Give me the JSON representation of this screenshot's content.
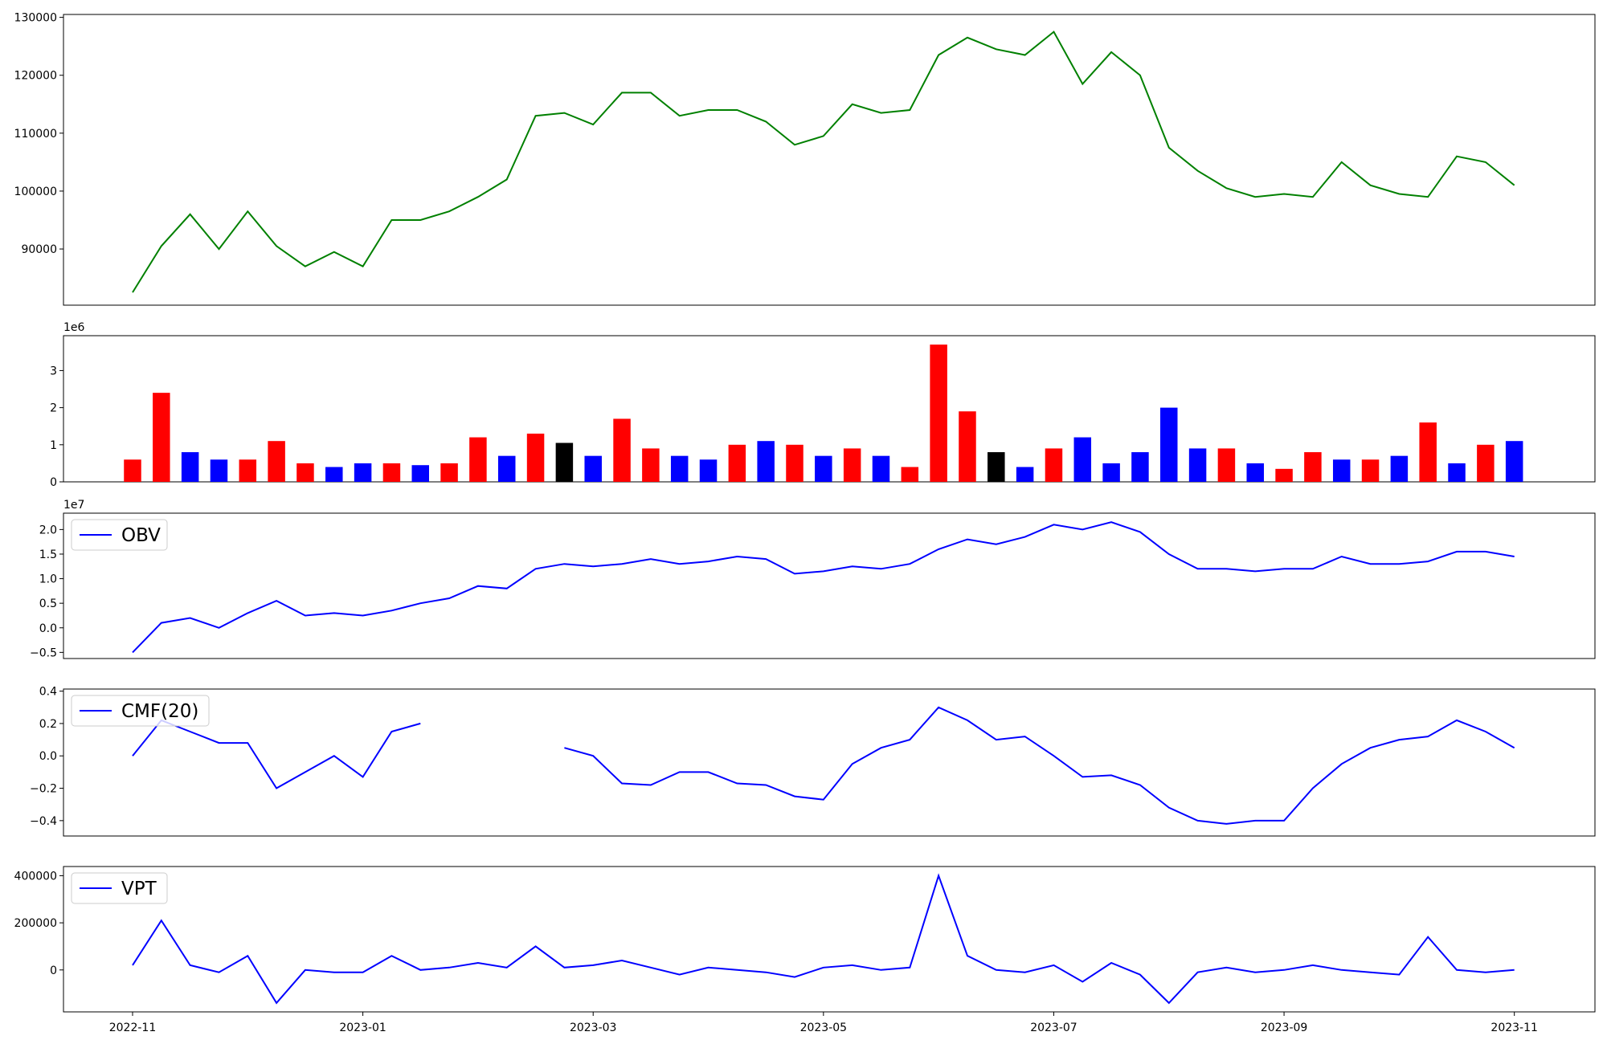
{
  "chart_data": [
    {
      "type": "line",
      "x": [
        0,
        0.25,
        0.5,
        0.75,
        1,
        1.25,
        1.5,
        1.75,
        2,
        2.25,
        2.5,
        2.75,
        3,
        3.25,
        3.5,
        3.75,
        4,
        4.25,
        4.5,
        4.75,
        5,
        5.25,
        5.5,
        5.75,
        6,
        6.25,
        6.5,
        6.75,
        7,
        7.25,
        7.5,
        7.75,
        8,
        8.25,
        8.5,
        8.75,
        9,
        9.25,
        9.5,
        9.75,
        10,
        10.25,
        10.5,
        10.75,
        11,
        11.25,
        11.5,
        11.75,
        12
      ],
      "xlim": [
        -0.6,
        12.7
      ],
      "ylim": [
        80300,
        130500
      ],
      "yticks": [
        90000,
        100000,
        110000,
        120000,
        130000
      ],
      "series": [
        {
          "color": "#008000",
          "values": [
            82500,
            90500,
            96000,
            90000,
            96500,
            90500,
            87000,
            89500,
            87000,
            95000,
            95000,
            96500,
            99000,
            102000,
            113000,
            113500,
            111500,
            117000,
            117000,
            113000,
            114000,
            114000,
            112000,
            108000,
            109500,
            115000,
            113500,
            114000,
            123500,
            126500,
            124500,
            123500,
            127500,
            118500,
            124000,
            120000,
            107500,
            103500,
            100500,
            99000,
            99500,
            99000,
            105000,
            101000,
            99500,
            99000,
            106000,
            105000,
            101000
          ]
        }
      ]
    },
    {
      "type": "bar",
      "x": [
        0,
        0.25,
        0.5,
        0.75,
        1,
        1.25,
        1.5,
        1.75,
        2,
        2.25,
        2.5,
        2.75,
        3,
        3.25,
        3.5,
        3.75,
        4,
        4.25,
        4.5,
        4.75,
        5,
        5.25,
        5.5,
        5.75,
        6,
        6.25,
        6.5,
        6.75,
        7,
        7.25,
        7.5,
        7.75,
        8,
        8.25,
        8.5,
        8.75,
        9,
        9.25,
        9.5,
        9.75,
        10,
        10.25,
        10.5,
        10.75,
        11,
        11.25,
        11.5,
        11.75,
        12
      ],
      "xlim": [
        -0.6,
        12.7
      ],
      "offset_text": "1e6",
      "ylim": [
        0,
        3.94
      ],
      "yticks": [
        0,
        1,
        2,
        3
      ],
      "series": [
        {
          "values": [
            0.6,
            2.4,
            0.8,
            0.6,
            0.6,
            1.1,
            0.5,
            0.4,
            0.5,
            0.5,
            0.45,
            0.5,
            1.2,
            0.7,
            1.3,
            1.05,
            0.7,
            1.7,
            0.9,
            0.7,
            0.6,
            1.0,
            1.1,
            1.0,
            0.7,
            0.9,
            0.7,
            0.4,
            3.7,
            1.9,
            0.8,
            0.4,
            0.9,
            1.2,
            0.5,
            0.8,
            2.0,
            0.9,
            0.9,
            0.5,
            0.35,
            0.8,
            0.6,
            0.6,
            0.7,
            1.6,
            0.5,
            1.0,
            1.1
          ],
          "colors": [
            "#ff0000",
            "#ff0000",
            "#0000ff",
            "#0000ff",
            "#ff0000",
            "#ff0000",
            "#ff0000",
            "#0000ff",
            "#0000ff",
            "#ff0000",
            "#0000ff",
            "#ff0000",
            "#ff0000",
            "#0000ff",
            "#ff0000",
            "#000000",
            "#0000ff",
            "#ff0000",
            "#ff0000",
            "#0000ff",
            "#0000ff",
            "#ff0000",
            "#0000ff",
            "#ff0000",
            "#0000ff",
            "#ff0000",
            "#0000ff",
            "#ff0000",
            "#ff0000",
            "#ff0000",
            "#000000",
            "#0000ff",
            "#ff0000",
            "#0000ff",
            "#0000ff",
            "#0000ff",
            "#0000ff",
            "#0000ff",
            "#ff0000",
            "#0000ff",
            "#ff0000",
            "#ff0000",
            "#0000ff",
            "#ff0000",
            "#0000ff",
            "#ff0000",
            "#0000ff",
            "#ff0000",
            "#0000ff"
          ]
        }
      ]
    },
    {
      "type": "line",
      "x": [
        0,
        0.25,
        0.5,
        0.75,
        1,
        1.25,
        1.5,
        1.75,
        2,
        2.25,
        2.5,
        2.75,
        3,
        3.25,
        3.5,
        3.75,
        4,
        4.25,
        4.5,
        4.75,
        5,
        5.25,
        5.5,
        5.75,
        6,
        6.25,
        6.5,
        6.75,
        7,
        7.25,
        7.5,
        7.75,
        8,
        8.25,
        8.5,
        8.75,
        9,
        9.25,
        9.5,
        9.75,
        10,
        10.25,
        10.5,
        10.75,
        11,
        11.25,
        11.5,
        11.75,
        12
      ],
      "xlim": [
        -0.6,
        12.7
      ],
      "offset_text": "1e7",
      "legend": "upper left",
      "ylim": [
        -0.625,
        2.333
      ],
      "yticks": [
        {
          "value": -0.5,
          "label": "−0.5"
        },
        {
          "value": 0,
          "label": "0.0"
        },
        0.5,
        {
          "value": 1,
          "label": "1.0"
        },
        1.5,
        {
          "value": 2,
          "label": "2.0"
        }
      ],
      "series": [
        {
          "name": "OBV",
          "color": "#0000ff",
          "values": [
            -0.5,
            0.1,
            0.2,
            0.0,
            0.3,
            0.55,
            0.25,
            0.3,
            0.25,
            0.35,
            0.5,
            0.6,
            0.85,
            0.8,
            1.2,
            1.3,
            1.25,
            1.3,
            1.4,
            1.3,
            1.35,
            1.45,
            1.4,
            1.1,
            1.15,
            1.25,
            1.2,
            1.3,
            1.6,
            1.8,
            1.7,
            1.85,
            2.1,
            2.0,
            2.15,
            1.95,
            1.5,
            1.2,
            1.2,
            1.15,
            1.2,
            1.2,
            1.45,
            1.3,
            1.3,
            1.35,
            1.55,
            1.55,
            1.45
          ]
        }
      ]
    },
    {
      "type": "line",
      "x": [
        0,
        0.25,
        0.5,
        0.75,
        1,
        1.25,
        1.5,
        1.75,
        2,
        2.25,
        2.5,
        2.75,
        3,
        3.25,
        3.5,
        3.75,
        4,
        4.25,
        4.5,
        4.75,
        5,
        5.25,
        5.5,
        5.75,
        6,
        6.25,
        6.5,
        6.75,
        7,
        7.25,
        7.5,
        7.75,
        8,
        8.25,
        8.5,
        8.75,
        9,
        9.25,
        9.5,
        9.75,
        10,
        10.25,
        10.5,
        10.75,
        11,
        11.25,
        11.5,
        11.75,
        12
      ],
      "xlim": [
        -0.6,
        12.7
      ],
      "legend": "upper left",
      "ylim": [
        -0.495,
        0.413
      ],
      "yticks": [
        {
          "value": -0.4,
          "label": "−0.4"
        },
        {
          "value": -0.2,
          "label": "−0.2"
        },
        {
          "value": 0,
          "label": "0.0"
        },
        0.2,
        0.4
      ],
      "series": [
        {
          "name": "CMF(20)",
          "color": "#0000ff",
          "values": [
            0.0,
            0.22,
            0.15,
            0.08,
            0.08,
            -0.2,
            -0.1,
            0.0,
            -0.13,
            0.15,
            0.2,
            null,
            null,
            null,
            null,
            0.05,
            0.0,
            -0.17,
            -0.18,
            -0.1,
            -0.1,
            -0.17,
            -0.18,
            -0.25,
            -0.27,
            -0.05,
            0.05,
            0.1,
            0.3,
            0.22,
            0.1,
            0.12,
            0.0,
            -0.13,
            -0.12,
            -0.18,
            -0.32,
            -0.4,
            -0.42,
            -0.4,
            -0.4,
            -0.2,
            -0.05,
            0.05,
            0.1,
            0.12,
            0.22,
            0.15,
            0.05
          ]
        }
      ]
    },
    {
      "type": "line",
      "x": [
        0,
        0.25,
        0.5,
        0.75,
        1,
        1.25,
        1.5,
        1.75,
        2,
        2.25,
        2.5,
        2.75,
        3,
        3.25,
        3.5,
        3.75,
        4,
        4.25,
        4.5,
        4.75,
        5,
        5.25,
        5.5,
        5.75,
        6,
        6.25,
        6.5,
        6.75,
        7,
        7.25,
        7.5,
        7.75,
        8,
        8.25,
        8.5,
        8.75,
        9,
        9.25,
        9.5,
        9.75,
        10,
        10.25,
        10.5,
        10.75,
        11,
        11.25,
        11.5,
        11.75,
        12
      ],
      "xlim": [
        -0.6,
        12.7
      ],
      "xticks": [
        {
          "value": 0,
          "label": "2022-11"
        },
        {
          "value": 2,
          "label": "2023-01"
        },
        {
          "value": 4,
          "label": "2023-03"
        },
        {
          "value": 6,
          "label": "2023-05"
        },
        {
          "value": 8,
          "label": "2023-07"
        },
        {
          "value": 10,
          "label": "2023-09"
        },
        {
          "value": 12,
          "label": "2023-11"
        }
      ],
      "legend": "upper left",
      "ylim": [
        -178000,
        439000
      ],
      "yticks": [
        0,
        200000,
        400000
      ],
      "series": [
        {
          "name": "VPT",
          "color": "#0000ff",
          "values": [
            20000,
            210000,
            20000,
            -10000,
            60000,
            -140000,
            0,
            -10000,
            -10000,
            60000,
            0,
            10000,
            30000,
            10000,
            100000,
            10000,
            20000,
            40000,
            10000,
            -20000,
            10000,
            0,
            -10000,
            -30000,
            10000,
            20000,
            0,
            10000,
            400000,
            60000,
            0,
            -10000,
            20000,
            -50000,
            30000,
            -20000,
            -140000,
            -10000,
            10000,
            -10000,
            0,
            20000,
            0,
            -10000,
            -20000,
            140000,
            0,
            -10000,
            0
          ]
        }
      ]
    }
  ]
}
